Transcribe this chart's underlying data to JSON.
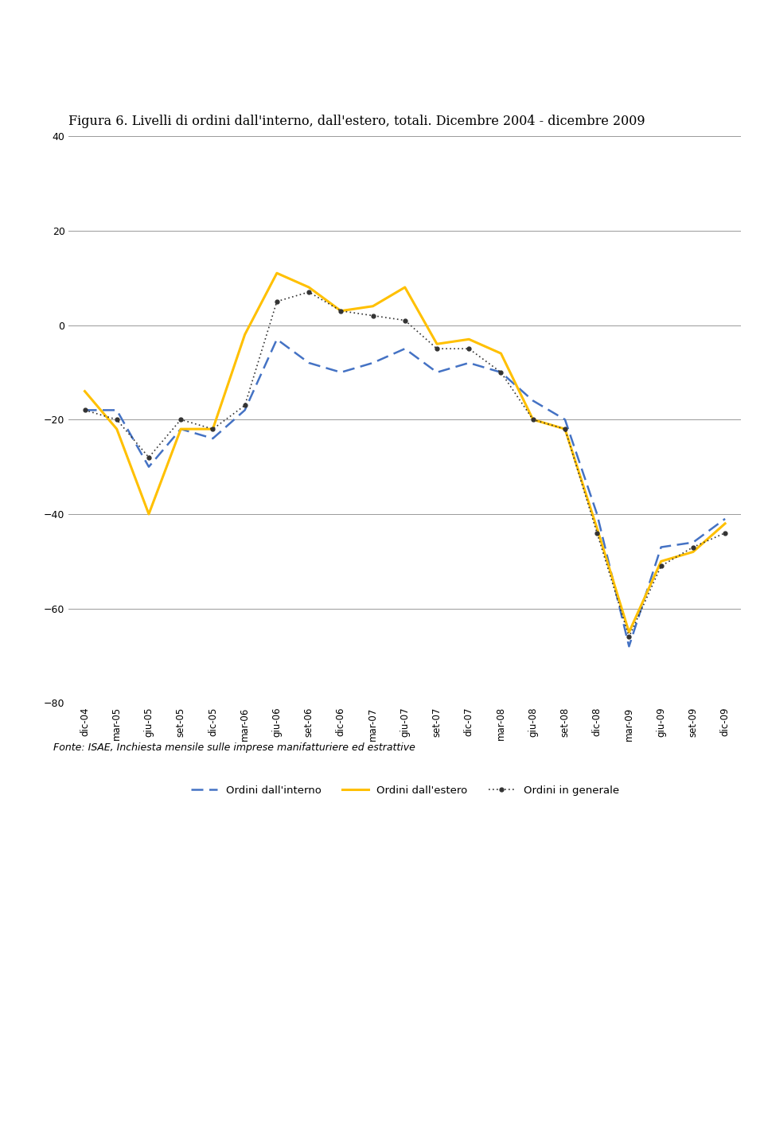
{
  "title": "Figura 6. Livelli di ordini dall'interno, dall'estero, totali. Dicembre 2004 - dicembre 2009",
  "fonte": "Fonte: ISAE, Inchiesta mensile sulle imprese manifatturiere ed estrattive",
  "ylim": [
    -80,
    40
  ],
  "yticks": [
    -80,
    -60,
    -40,
    -20,
    0,
    20,
    40
  ],
  "x_labels": [
    "dic-04",
    "mar-05",
    "giu-05",
    "set-05",
    "dic-05",
    "mar-06",
    "giu-06",
    "set-06",
    "dic-06",
    "mar-07",
    "giu-07",
    "set-07",
    "dic-07",
    "mar-08",
    "giu-08",
    "set-08",
    "dic-08",
    "mar-09",
    "giu-09",
    "set-09",
    "dic-09"
  ],
  "ordini_interno": [
    -18,
    -18,
    -30,
    -22,
    -24,
    -18,
    -3,
    -8,
    -10,
    -8,
    -5,
    -10,
    -8,
    -10,
    -16,
    -20,
    -40,
    -68,
    -47,
    -46,
    -41
  ],
  "ordini_estero": [
    -14,
    -22,
    -40,
    -22,
    -22,
    -2,
    11,
    8,
    3,
    4,
    8,
    -4,
    -3,
    -6,
    -20,
    -22,
    -43,
    -65,
    -50,
    -48,
    -42
  ],
  "ordini_generale": [
    -18,
    -20,
    -28,
    -20,
    -22,
    -17,
    5,
    7,
    3,
    2,
    1,
    -5,
    -5,
    -10,
    -20,
    -22,
    -44,
    -66,
    -51,
    -47,
    -44
  ],
  "color_interno": "#4472C4",
  "color_estero": "#FFC000",
  "color_generale": "#333333",
  "legend_interno": "Ordini dall'interno",
  "legend_estero": "Ordini dall'estero",
  "legend_generale": "Ordini in generale",
  "background_color": "#ffffff",
  "grid_color": "#999999"
}
